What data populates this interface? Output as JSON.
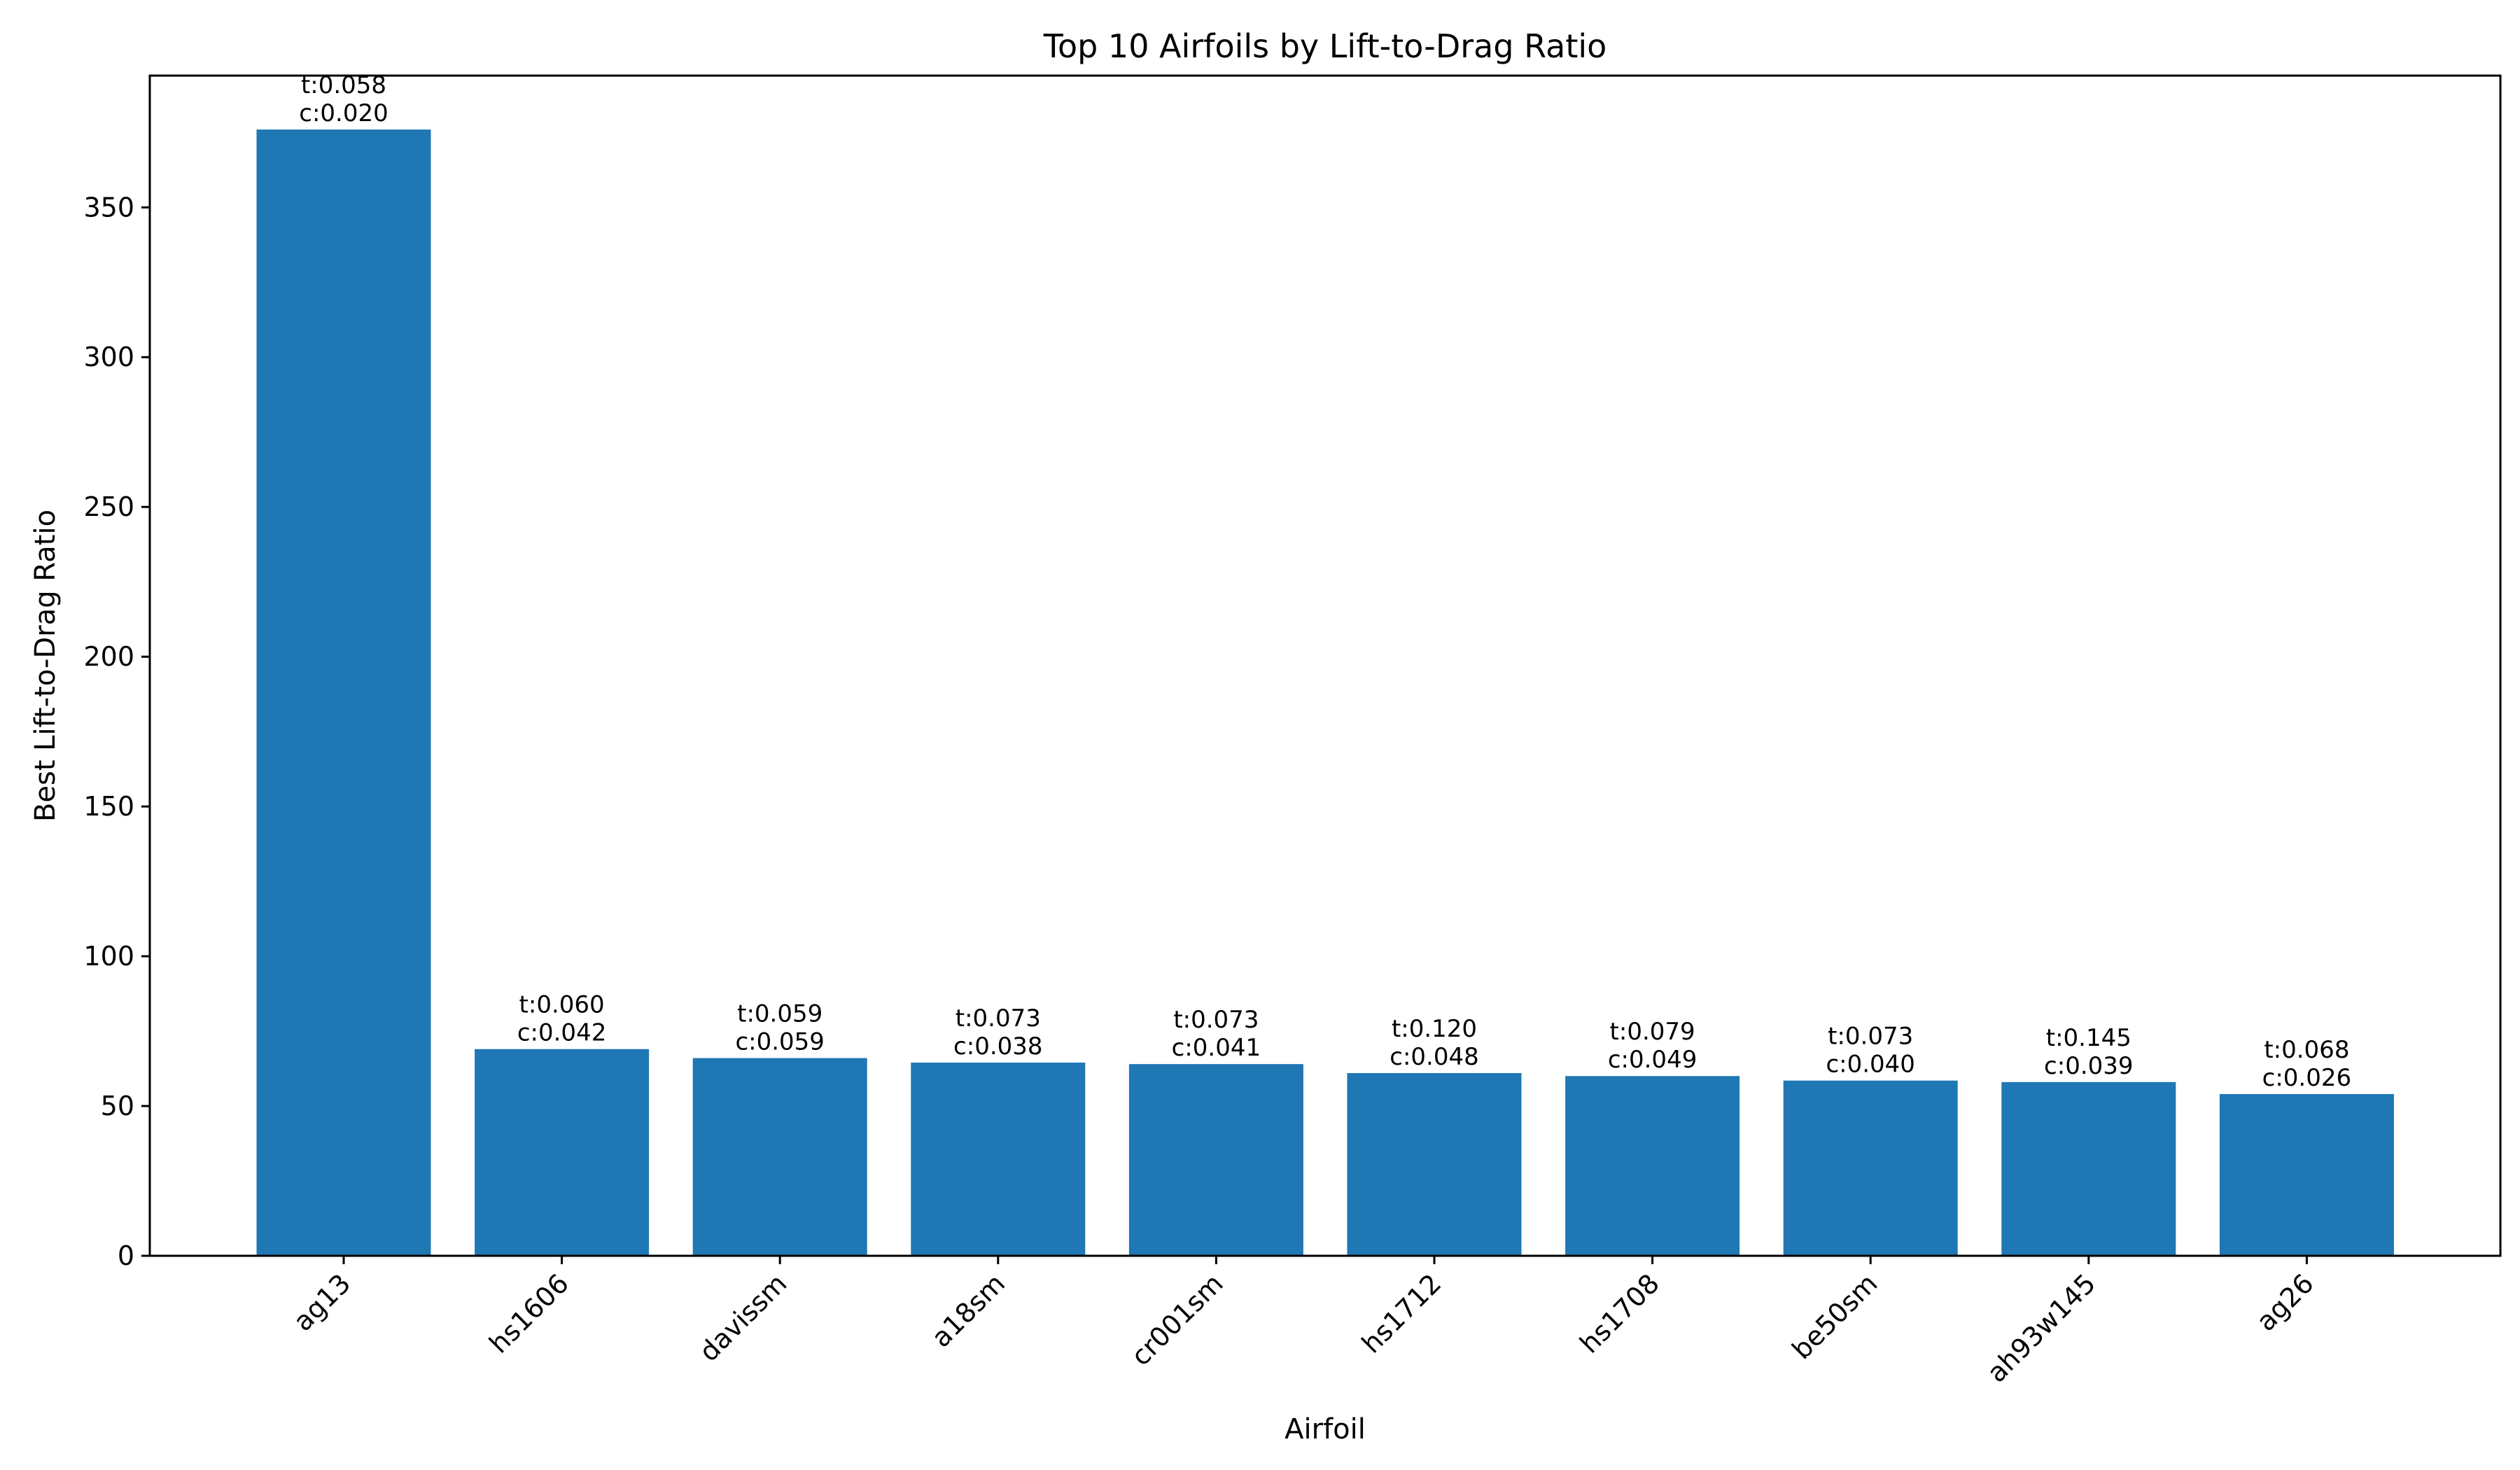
{
  "chart_data": {
    "type": "bar",
    "title": "Top 10 Airfoils by Lift-to-Drag Ratio",
    "xlabel": "Airfoil",
    "ylabel": "Best Lift-to-Drag Ratio",
    "categories": [
      "ag13",
      "hs1606",
      "davissm",
      "a18sm",
      "cr001sm",
      "hs1712",
      "hs1708",
      "be50sm",
      "ah93w145",
      "ag26"
    ],
    "values": [
      376,
      69,
      66,
      64.5,
      64,
      61,
      60,
      58.5,
      58,
      54
    ],
    "bar_labels": [
      [
        "t:0.058",
        "c:0.020"
      ],
      [
        "t:0.060",
        "c:0.042"
      ],
      [
        "t:0.059",
        "c:0.059"
      ],
      [
        "t:0.073",
        "c:0.038"
      ],
      [
        "t:0.073",
        "c:0.041"
      ],
      [
        "t:0.120",
        "c:0.048"
      ],
      [
        "t:0.079",
        "c:0.049"
      ],
      [
        "t:0.073",
        "c:0.040"
      ],
      [
        "t:0.145",
        "c:0.039"
      ],
      [
        "t:0.068",
        "c:0.026"
      ]
    ],
    "ylim": [
      0,
      394
    ],
    "yticks": [
      0,
      50,
      100,
      150,
      200,
      250,
      300,
      350
    ],
    "bar_color": "#1f77b4",
    "grid": false,
    "legend": "none"
  }
}
